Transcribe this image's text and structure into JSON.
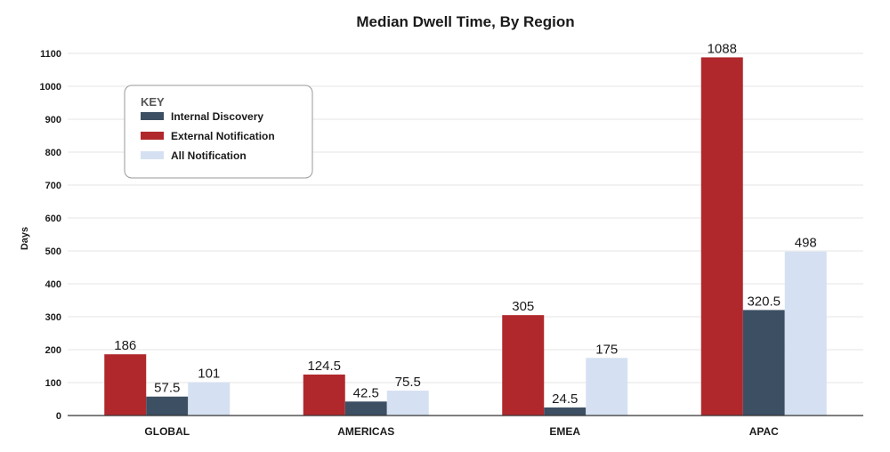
{
  "chart_data": {
    "type": "bar",
    "title": "Median Dwell Time, By Region",
    "xlabel": "",
    "ylabel": "Days",
    "ylim": [
      0,
      1100
    ],
    "yticks": [
      0,
      100,
      200,
      300,
      400,
      500,
      600,
      700,
      800,
      900,
      1000,
      1100
    ],
    "grid": true,
    "categories": [
      "GLOBAL",
      "AMERICAS",
      "EMEA",
      "APAC"
    ],
    "series": [
      {
        "name": "External Notification",
        "color": "#b0282c",
        "values": [
          186,
          124.5,
          305,
          1088
        ],
        "labels": [
          "186",
          "124.5",
          "305",
          "1088"
        ]
      },
      {
        "name": "Internal Discovery",
        "color": "#3d4f63",
        "values": [
          57.5,
          42.5,
          24.5,
          320.5
        ],
        "labels": [
          "57.5",
          "42.5",
          "24.5",
          "320.5"
        ]
      },
      {
        "name": "All Notification",
        "color": "#d5e1f2",
        "values": [
          101,
          75.5,
          175,
          498
        ],
        "labels": [
          "101",
          "75.5",
          "175",
          "498"
        ]
      }
    ],
    "legend": {
      "title": "KEY",
      "position": "top-left",
      "entries": [
        {
          "name": "Internal Discovery",
          "color": "#3d4f63"
        },
        {
          "name": "External Notification",
          "color": "#b0282c"
        },
        {
          "name": "All Notification",
          "color": "#d5e1f2"
        }
      ]
    }
  }
}
